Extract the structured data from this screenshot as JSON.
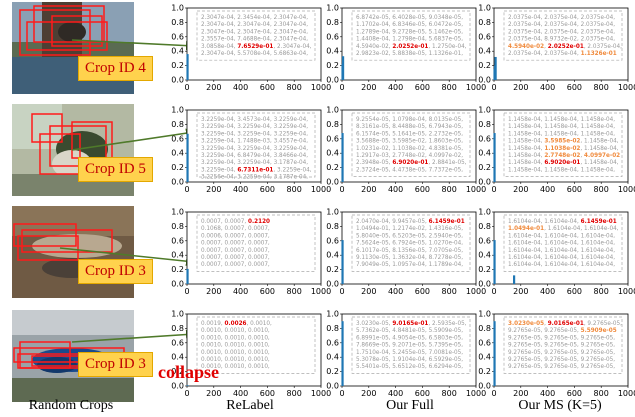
{
  "crop_ids": [
    "Crop ID 4",
    "Crop ID 5",
    "Crop ID 3",
    "Crop ID 3"
  ],
  "bottom_labels": {
    "crops": "Random Crops",
    "relabel": "ReLabel",
    "full": "Our Full",
    "ms": "Our MS (K=5)"
  },
  "collapse_text": "collapse",
  "colors": {
    "accent_red": "#e00000",
    "accent_orange": "#f08a3c",
    "bar_blue": "#1f77b4",
    "crop_box": "#ff1a1a"
  },
  "x_ticks": [
    "0",
    "200",
    "400",
    "600",
    "800",
    "1000"
  ],
  "y_ticks": [
    "0.0",
    "0.2",
    "0.4",
    "0.6",
    "0.8",
    "1.0"
  ],
  "chart_data": [
    {
      "type": "bar",
      "row": 1,
      "panel": "ReLabel",
      "bars": [
        {
          "x": 4,
          "y": 0.36
        }
      ],
      "xlim": [
        0,
        1000
      ],
      "ylim": [
        0,
        1.0
      ]
    },
    {
      "type": "bar",
      "row": 1,
      "panel": "Our Full",
      "bars": [
        {
          "x": 4,
          "y": 0.22
        },
        {
          "x": 8,
          "y": 0.33
        }
      ],
      "xlim": [
        0,
        1000
      ],
      "ylim": [
        0,
        1.0
      ]
    },
    {
      "type": "bar",
      "row": 1,
      "panel": "Our MS",
      "bars": [
        {
          "x": 4,
          "y": 0.15
        },
        {
          "x": 8,
          "y": 0.2
        },
        {
          "x": 12,
          "y": 0.32
        }
      ],
      "xlim": [
        0,
        1000
      ],
      "ylim": [
        0,
        1.0
      ]
    },
    {
      "type": "bar",
      "row": 2,
      "panel": "ReLabel",
      "bars": [
        {
          "x": 4,
          "y": 0.67
        }
      ],
      "xlim": [
        0,
        1000
      ],
      "ylim": [
        0,
        1.0
      ]
    },
    {
      "type": "bar",
      "row": 2,
      "panel": "Our Full",
      "bars": [
        {
          "x": 4,
          "y": 0.68
        }
      ],
      "xlim": [
        0,
        1000
      ],
      "ylim": [
        0,
        1.0
      ]
    },
    {
      "type": "bar",
      "row": 2,
      "panel": "Our MS",
      "bars": [
        {
          "x": 4,
          "y": 0.68
        }
      ],
      "xlim": [
        0,
        1000
      ],
      "ylim": [
        0,
        1.0
      ]
    },
    {
      "type": "bar",
      "row": 3,
      "panel": "ReLabel",
      "bars": [
        {
          "x": 4,
          "y": 0.21
        }
      ],
      "xlim": [
        0,
        1000
      ],
      "ylim": [
        0,
        1.0
      ]
    },
    {
      "type": "bar",
      "row": 3,
      "panel": "Our Full",
      "bars": [
        {
          "x": 4,
          "y": 0.61
        }
      ],
      "xlim": [
        0,
        1000
      ],
      "ylim": [
        0,
        1.0
      ]
    },
    {
      "type": "bar",
      "row": 3,
      "panel": "Our MS",
      "bars": [
        {
          "x": 4,
          "y": 0.61
        },
        {
          "x": 150,
          "y": 0.12
        }
      ],
      "xlim": [
        0,
        1000
      ],
      "ylim": [
        0,
        1.0
      ]
    },
    {
      "type": "bar",
      "row": 4,
      "panel": "ReLabel",
      "bars": [
        {
          "x": 4,
          "y": 0.01
        }
      ],
      "xlim": [
        0,
        1000
      ],
      "ylim": [
        0,
        1.0
      ]
    },
    {
      "type": "bar",
      "row": 4,
      "panel": "Our Full",
      "bars": [
        {
          "x": 4,
          "y": 0.9
        }
      ],
      "xlim": [
        0,
        1000
      ],
      "ylim": [
        0,
        1.0
      ]
    },
    {
      "type": "bar",
      "row": 4,
      "panel": "Our MS",
      "bars": [
        {
          "x": 4,
          "y": 0.9
        }
      ],
      "xlim": [
        0,
        1000
      ],
      "ylim": [
        0,
        1.0
      ]
    }
  ],
  "matrices": [
    {
      "row": 1,
      "panel": "ReLabel",
      "lines": [
        [
          [
            "2.3047e-04, 2.3454e-04, 2.3047e-04,",
            "g"
          ]
        ],
        [
          [
            "2.3047e-04, 2.3047e-04, 2.3047e-04,",
            "g"
          ]
        ],
        [
          [
            "2.3047e-04, 2.3047e-04, 2.3047e-04,",
            "g"
          ]
        ],
        [
          [
            "2.3557e-04, 7.4688e-04, 2.3047e-04,",
            "g"
          ]
        ],
        [
          [
            "3.0858e-04, ",
            "g"
          ],
          [
            "7.6529e-01",
            "r"
          ],
          [
            ", 2.3047e-04,",
            "g"
          ]
        ],
        [
          [
            "2.3047e-04, 5.5708e-04, 5.6863e-04,",
            "g"
          ]
        ]
      ]
    },
    {
      "row": 1,
      "panel": "Our Full",
      "lines": [
        [
          [
            "6.8742e-05, 6.4028e-05, 9.0348e-05,",
            "g"
          ]
        ],
        [
          [
            "1.1702e-04, 6.8346e-05, 6.0472e-05,",
            "g"
          ]
        ],
        [
          [
            "1.2789e-04, 9.2728e-05, 5.1462e-05,",
            "g"
          ]
        ],
        [
          [
            "1.4408e-04, 1.2798e-04, 5.6837e-05,",
            "g"
          ]
        ],
        [
          [
            "4.5940e-02, ",
            "g"
          ],
          [
            "2.0252e-01",
            "r"
          ],
          [
            ", 1.2750e-04,",
            "g"
          ]
        ],
        [
          [
            "2.9823e-02, 5.8838e-05, 1.1326e-01,",
            "g"
          ]
        ]
      ]
    },
    {
      "row": 1,
      "panel": "Our MS",
      "lines": [
        [
          [
            "2.0375e-04, 2.0375e-04, 2.0375e-04,",
            "g"
          ]
        ],
        [
          [
            "2.0375e-04, 2.0375e-04, 2.0375e-04,",
            "g"
          ]
        ],
        [
          [
            "2.0375e-04, 2.0375e-04, 2.0375e-04,",
            "g"
          ]
        ],
        [
          [
            "2.0375e-04, 8.9732e-02, 2.0375e-04,",
            "g"
          ]
        ],
        [
          [
            "4.5940e-02",
            "o"
          ],
          [
            ", ",
            "g"
          ],
          [
            "2.0252e-01",
            "r"
          ],
          [
            ", 2.0375e-04,",
            "g"
          ]
        ],
        [
          [
            "2.0375e-04, 2.0375e-04, ",
            "g"
          ],
          [
            "1.1326e-01",
            "o"
          ]
        ]
      ]
    },
    {
      "row": 2,
      "panel": "ReLabel",
      "lines": [
        [
          [
            "3.2259e-04, 3.4573e-04, 3.2259e-04,",
            "g"
          ]
        ],
        [
          [
            "3.2259e-04, 3.2259e-04, 3.2259e-04,",
            "g"
          ]
        ],
        [
          [
            "3.2259e-04, 3.2259e-04, 3.2259e-04,",
            "g"
          ]
        ],
        [
          [
            "3.2259e-04, 1.7488e-03, 3.4557e-04,",
            "g"
          ]
        ],
        [
          [
            "3.2259e-04, 3.2259e-04, 3.2259e-04,",
            "g"
          ]
        ],
        [
          [
            "3.2259e-04, 6.8479e-04, 3.8466e-04,",
            "g"
          ]
        ],
        [
          [
            "3.2259e-04, 3.2259e-04, 3.1787e-04,",
            "g"
          ]
        ],
        [
          [
            "3.2259e-04, ",
            "g"
          ],
          [
            "6.7311e-01",
            "r"
          ],
          [
            ", 3.2259e-04,",
            "g"
          ]
        ],
        [
          [
            "3.2256e-04, 3.2259e-04, 3.1787e-04,",
            "g"
          ]
        ]
      ]
    },
    {
      "row": 2,
      "panel": "Our Full",
      "lines": [
        [
          [
            "9.2554e-05, 1.0798e-04, 8.0135e-05,",
            "g"
          ]
        ],
        [
          [
            "8.3161e-05, 8.4488e-05, 6.7943e-05,",
            "g"
          ]
        ],
        [
          [
            "6.1574e-05, 5.1641e-05, 2.2732e-05,",
            "g"
          ]
        ],
        [
          [
            "3.5688e-05, 3.5985e-02, 1.8603e-05,",
            "g"
          ]
        ],
        [
          [
            "1.0231e-02, 1.1038e-02, 4.8381e-05,",
            "g"
          ]
        ],
        [
          [
            "1.2917e-03, 2.7748e-02, 4.0997e-02,",
            "g"
          ]
        ],
        [
          [
            "2.3948e-05, ",
            "g"
          ],
          [
            "6.9020e-01",
            "r"
          ],
          [
            ", 2.8841e-05,",
            "g"
          ]
        ],
        [
          [
            "2.3724e-05, 4.4738e-05, 7.7372e-05,",
            "g"
          ]
        ]
      ]
    },
    {
      "row": 2,
      "panel": "Our MS",
      "lines": [
        [
          [
            "1.1458e-04, 1.1458e-04, 1.1458e-04,",
            "g"
          ]
        ],
        [
          [
            "1.1458e-04, 1.1458e-04, 1.1458e-04,",
            "g"
          ]
        ],
        [
          [
            "1.1458e-04, 1.1458e-04, 1.1458e-04,",
            "g"
          ]
        ],
        [
          [
            "1.1458e-04, ",
            "g"
          ],
          [
            "3.5985e-02",
            "o"
          ],
          [
            ", 1.1458e-04,",
            "g"
          ]
        ],
        [
          [
            "1.1458e-04, ",
            "g"
          ],
          [
            "1.1038e-02",
            "o"
          ],
          [
            ", 1.1458e-04,",
            "g"
          ]
        ],
        [
          [
            "1.1458e-04, ",
            "g"
          ],
          [
            "2.7748e-02",
            "o"
          ],
          [
            ", ",
            "g"
          ],
          [
            "4.0997e-02",
            "o"
          ]
        ],
        [
          [
            "1.1458e-04, ",
            "g"
          ],
          [
            "6.9020e-01",
            "r"
          ],
          [
            ", 1.1458e-04,",
            "g"
          ]
        ],
        [
          [
            "1.1458e-04, 1.1458e-04, 1.1458e-04,",
            "g"
          ]
        ]
      ]
    },
    {
      "row": 3,
      "panel": "ReLabel",
      "lines": [
        [
          [
            "0.0007, 0.0007, ",
            "g"
          ],
          [
            "0.2120",
            "r"
          ]
        ],
        [
          [
            "0.1068, 0.0007, 0.0007,",
            "g"
          ]
        ],
        [
          [
            "0.0006, 0.0007, 0.0007,",
            "g"
          ]
        ],
        [
          [
            "0.0007, 0.0007, 0.0007,",
            "g"
          ]
        ],
        [
          [
            "0.0007, 0.0007, 0.0007,",
            "g"
          ]
        ],
        [
          [
            "0.0007, 0.0007, 0.0007,",
            "g"
          ]
        ],
        [
          [
            "0.0007, 0.0007, 0.0007,",
            "g"
          ]
        ]
      ]
    },
    {
      "row": 3,
      "panel": "Our Full",
      "lines": [
        [
          [
            "2.0470e-04, 9.9457e-05, ",
            "g"
          ],
          [
            "6.1459e-01",
            "r"
          ]
        ],
        [
          [
            "1.0494e-01, 1.2174e-02, 1.4316e-05,",
            "g"
          ]
        ],
        [
          [
            "5.8040e-05, 6.5203e-05, 2.5940e-05,",
            "g"
          ]
        ],
        [
          [
            "7.5624e-05, 6.7924e-05, 1.0270e-04,",
            "g"
          ]
        ],
        [
          [
            "6.1017e-05, 8.1356e-05, 7.0705e-05,",
            "g"
          ]
        ],
        [
          [
            "9.1130e-05, 1.3632e-04, 8.7278e-05,",
            "g"
          ]
        ],
        [
          [
            "7.9049e-05, 1.0957e-04, 1.1789e-04,",
            "g"
          ]
        ]
      ]
    },
    {
      "row": 3,
      "panel": "Our MS",
      "lines": [
        [
          [
            "1.6104e-04, 1.6104e-04, ",
            "g"
          ],
          [
            "6.1459e-01",
            "r"
          ]
        ],
        [
          [
            "1.0494e-01",
            "o"
          ],
          [
            ", 1.6104e-04, 1.6104e-04,",
            "g"
          ]
        ],
        [
          [
            "1.6104e-04, 1.6104e-04, 1.6104e-04,",
            "g"
          ]
        ],
        [
          [
            "1.6104e-04, 1.6104e-04, 1.6104e-04,",
            "g"
          ]
        ],
        [
          [
            "1.6104e-04, 1.6104e-04, 1.6104e-04,",
            "g"
          ]
        ],
        [
          [
            "1.6104e-04, 1.6104e-04, 1.6104e-04,",
            "g"
          ]
        ],
        [
          [
            "1.6104e-04, 1.6104e-04, 1.6104e-04,",
            "g"
          ]
        ]
      ]
    },
    {
      "row": 4,
      "panel": "ReLabel",
      "lines": [
        [
          [
            "0.0019, ",
            "g"
          ],
          [
            "0.0026",
            "r"
          ],
          [
            ", 0.0010,",
            "g"
          ]
        ],
        [
          [
            "0.0010, 0.0010, 0.0010,",
            "g"
          ]
        ],
        [
          [
            "0.0010, 0.0010, 0.0010,",
            "g"
          ]
        ],
        [
          [
            "0.0010, 0.0010, 0.0010,",
            "g"
          ]
        ],
        [
          [
            "0.0010, 0.0010, 0.0010,",
            "g"
          ]
        ],
        [
          [
            "0.0010, 0.0010, 0.0010,",
            "g"
          ]
        ],
        [
          [
            "0.0010, 0.0010, 0.0010,",
            "g"
          ]
        ]
      ]
    },
    {
      "row": 4,
      "panel": "Our Full",
      "lines": [
        [
          [
            "3.0230e-05, ",
            "g"
          ],
          [
            "9.0165e-01",
            "r"
          ],
          [
            ", 2.5935e-05,",
            "g"
          ]
        ],
        [
          [
            "5.7362e-05, 4.8481e-05, 5.5909e-05,",
            "g"
          ]
        ],
        [
          [
            "6.8991e-05, 4.9054e-05, 6.5803e-05,",
            "g"
          ]
        ],
        [
          [
            "7.8669e-05, 9.2071e-05, 5.7395e-05,",
            "g"
          ]
        ],
        [
          [
            "1.7510e-04, 5.2455e-05, 7.0081e-05,",
            "g"
          ]
        ],
        [
          [
            "5.3078e-05, 1.9104e-04, 6.5929e-05,",
            "g"
          ]
        ],
        [
          [
            "5.5401e-05, 5.6512e-05, 6.6294e-05,",
            "g"
          ]
        ]
      ]
    },
    {
      "row": 4,
      "panel": "Our MS",
      "lines": [
        [
          [
            "3.0230e-05",
            "o"
          ],
          [
            ", ",
            "g"
          ],
          [
            "9.0165e-01",
            "r"
          ],
          [
            ", 9.2765e-05,",
            "g"
          ]
        ],
        [
          [
            "9.2765e-05, 9.2765e-05, ",
            "g"
          ],
          [
            "5.5909e-05",
            "o"
          ]
        ],
        [
          [
            "9.2765e-05, 9.2765e-05, 9.2765e-05,",
            "g"
          ]
        ],
        [
          [
            "9.2765e-05, 9.2765e-05, 9.2765e-05,",
            "g"
          ]
        ],
        [
          [
            "9.2765e-05, 9.2765e-05, 9.2765e-05,",
            "g"
          ]
        ],
        [
          [
            "9.2765e-05, 9.2765e-05, 9.2765e-05,",
            "g"
          ]
        ],
        [
          [
            "9.2765e-05, 9.2765e-05, 9.2765e-05,",
            "g"
          ]
        ]
      ]
    }
  ]
}
